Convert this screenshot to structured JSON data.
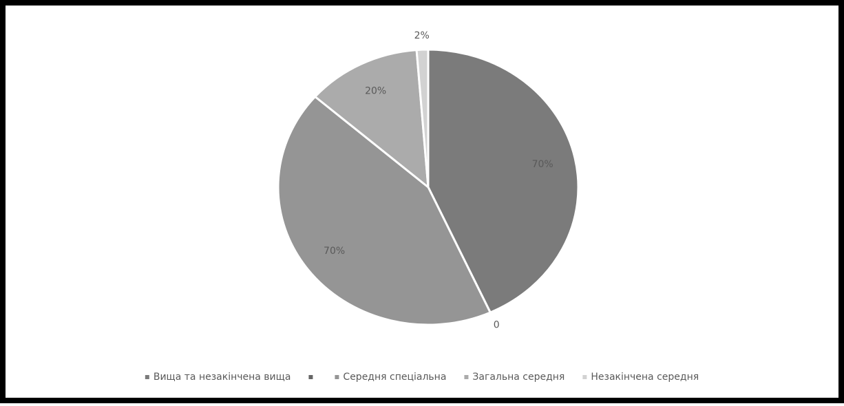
{
  "chart_data": {
    "type": "pie",
    "categories": [
      "Вища та незакінчена вища",
      null,
      "Середня спеціальна",
      "Загальна середня",
      "Незакінчена середня"
    ],
    "values": [
      70,
      0,
      70,
      20,
      2
    ],
    "value_labels": [
      "70%",
      "0",
      "70%",
      "20%",
      "2%"
    ],
    "colors": [
      "#7b7b7b",
      "#666666",
      "#959595",
      "#ababab",
      "#d2d2d2"
    ],
    "legend": "bottom"
  }
}
